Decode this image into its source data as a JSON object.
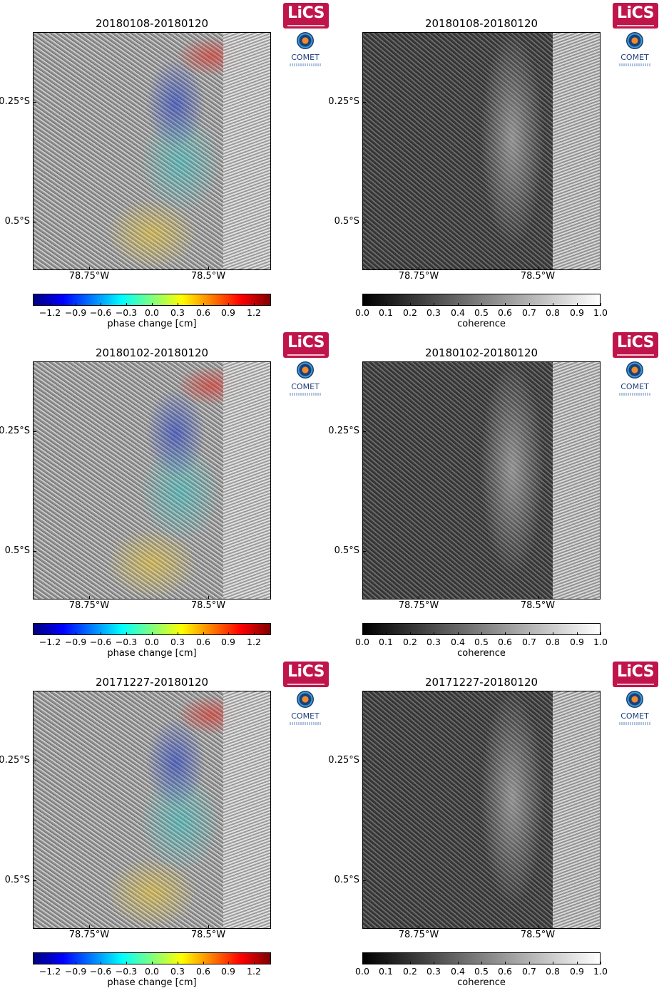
{
  "logos": {
    "lics_text": "LiCS",
    "comet_text": "COMET"
  },
  "axes": {
    "y_labels": [
      "0.25°S",
      "0.5°S"
    ],
    "x_labels": [
      "78.75°W",
      "78.5°W"
    ]
  },
  "phase_colorbar": {
    "ticks": [
      "−1.2",
      "−0.9",
      "−0.6",
      "−0.3",
      "0.0",
      "0.3",
      "0.6",
      "0.9",
      "1.2"
    ],
    "caption": "phase change [cm]",
    "range": [
      -1.4,
      1.4
    ],
    "colors": [
      "#00007f",
      "#0000ff",
      "#007fff",
      "#00ffff",
      "#7fff7f",
      "#ffff00",
      "#ff7f00",
      "#ff0000",
      "#7f0000"
    ]
  },
  "coherence_colorbar": {
    "ticks": [
      "0.0",
      "0.1",
      "0.2",
      "0.3",
      "0.4",
      "0.5",
      "0.6",
      "0.7",
      "0.8",
      "0.9",
      "1.0"
    ],
    "caption": "coherence",
    "range": [
      0.0,
      1.0
    ],
    "colors": [
      "#000000",
      "#ffffff"
    ]
  },
  "rows": [
    {
      "phase_title": "20180108-20180120",
      "coherence_title": "20180108-20180120"
    },
    {
      "phase_title": "20180102-20180120",
      "coherence_title": "20180102-20180120"
    },
    {
      "phase_title": "20171227-20180120",
      "coherence_title": "20171227-20180120"
    }
  ]
}
